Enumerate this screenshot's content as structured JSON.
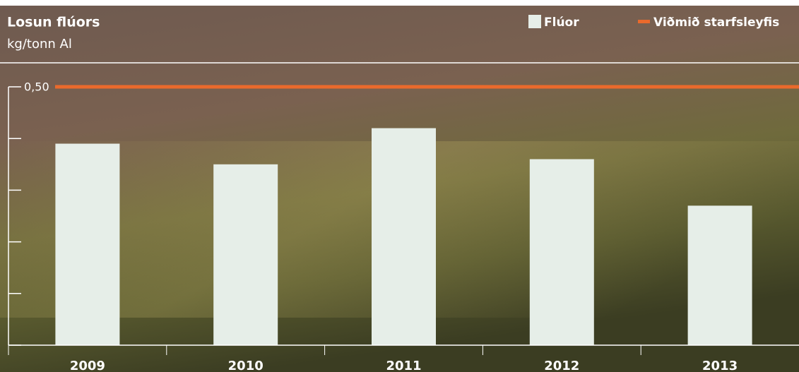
{
  "chart_data": {
    "type": "bar",
    "title": "Losun flúors",
    "subtitle": "kg/tonn Al",
    "categories": [
      "2009",
      "2010",
      "2011",
      "2012",
      "2013"
    ],
    "series": [
      {
        "name": "Flúor",
        "color": "#e6eee8",
        "values": [
          0.39,
          0.35,
          0.42,
          0.36,
          0.27
        ]
      }
    ],
    "limit": {
      "name": "Viðmið starfsleyfis",
      "color": "#ea6a2c",
      "value": 0.5
    },
    "ylim": [
      0,
      0.5
    ],
    "yticks": [
      {
        "value": 0,
        "label": null
      },
      {
        "value": 0.1,
        "label": null
      },
      {
        "value": 0.2,
        "label": null
      },
      {
        "value": 0.3,
        "label": null
      },
      {
        "value": 0.4,
        "label": null
      },
      {
        "value": 0.5,
        "label": "0,50"
      }
    ]
  }
}
